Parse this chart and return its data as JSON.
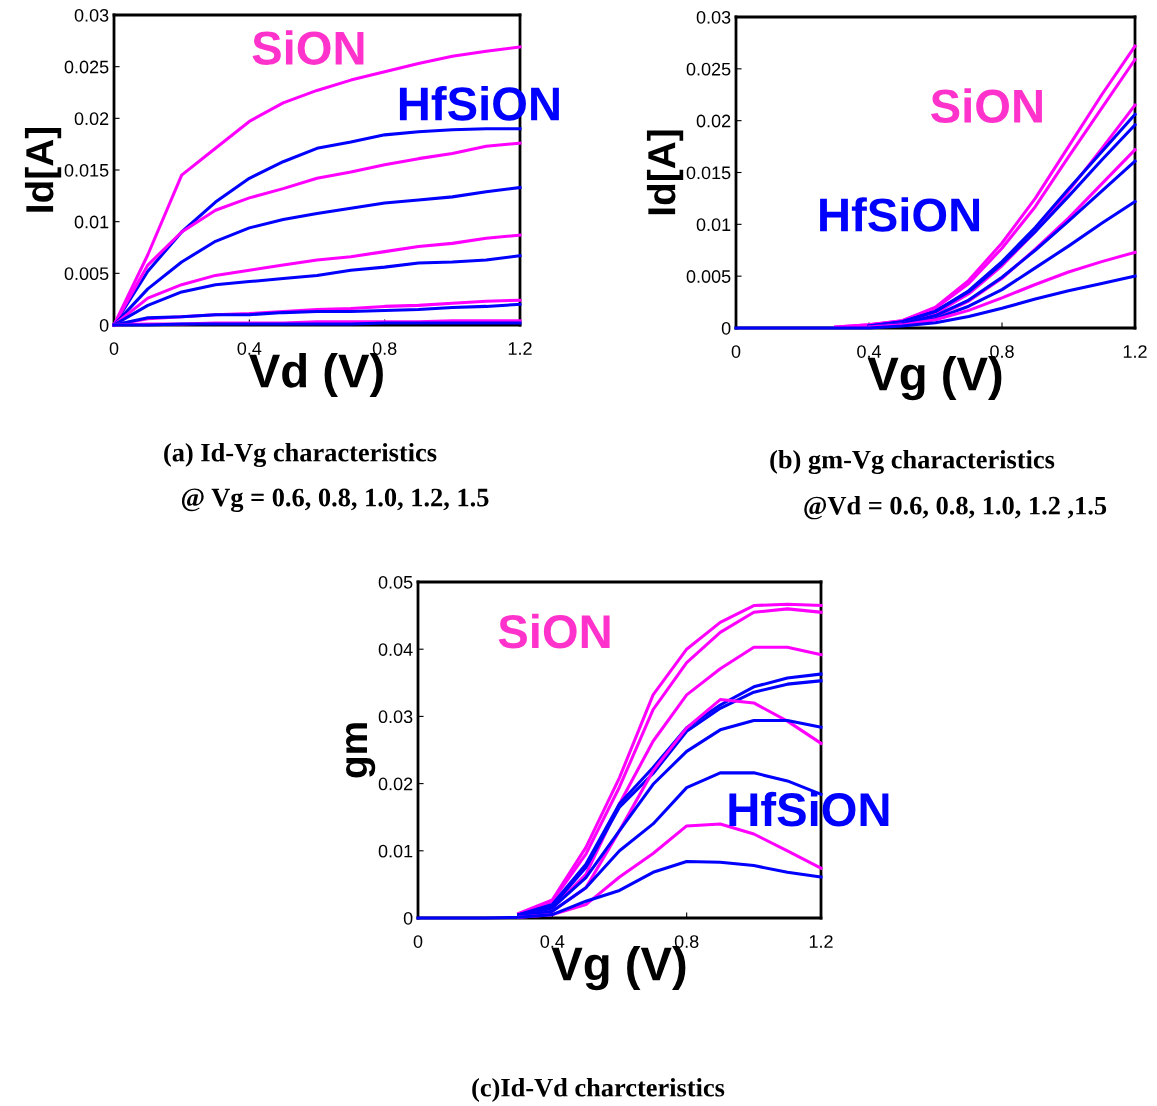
{
  "chart_data": [
    {
      "type": "line",
      "xlabel": "Vd (V)",
      "ylabel": "Id[A]",
      "x": [
        0,
        0.1,
        0.2,
        0.3,
        0.4,
        0.5,
        0.6,
        0.7,
        0.8,
        0.9,
        1.0,
        1.1,
        1.2
      ],
      "xlim": [
        0,
        1.2
      ],
      "xticks": [
        0,
        0.4,
        0.8,
        1.2
      ],
      "ylim": [
        0,
        0.03
      ],
      "yticks": [
        0,
        0.005,
        0.01,
        0.015,
        0.02,
        0.025,
        0.03
      ],
      "grid": false,
      "legend": false,
      "marker": "none",
      "line_style": "solid",
      "annotations": [
        "SiON",
        "HfSiON",
        "(a) Id-Vg characteristics",
        "@ Vg = 0.6, 0.8, 1.0, 1.2, 1.5"
      ],
      "series": [
        {
          "color": "#ff00ff",
          "values": [
            0,
            0.0068,
            0.0145,
            0.0171,
            0.0197,
            0.0215,
            0.0227,
            0.0237,
            0.0245,
            0.0253,
            0.026,
            0.0265,
            0.0269
          ]
        },
        {
          "color": "#0000ff",
          "values": [
            0,
            0.0052,
            0.009,
            0.0119,
            0.0142,
            0.0158,
            0.0171,
            0.0177,
            0.0184,
            0.0187,
            0.0189,
            0.019,
            0.019
          ]
        },
        {
          "color": "#ff00ff",
          "values": [
            0,
            0.0058,
            0.009,
            0.0111,
            0.0123,
            0.0132,
            0.0142,
            0.0148,
            0.0155,
            0.0161,
            0.0166,
            0.0173,
            0.0176
          ]
        },
        {
          "color": "#0000ff",
          "values": [
            0,
            0.0035,
            0.0061,
            0.0081,
            0.0094,
            0.0102,
            0.0108,
            0.0113,
            0.0118,
            0.0121,
            0.0124,
            0.0129,
            0.0133
          ]
        },
        {
          "color": "#ff00ff",
          "values": [
            0,
            0.0026,
            0.0039,
            0.0048,
            0.0053,
            0.0058,
            0.0063,
            0.0066,
            0.0071,
            0.0076,
            0.0079,
            0.0084,
            0.0087
          ]
        },
        {
          "color": "#0000ff",
          "values": [
            0,
            0.0019,
            0.0032,
            0.0039,
            0.0042,
            0.0045,
            0.0048,
            0.0053,
            0.0056,
            0.006,
            0.0061,
            0.0063,
            0.0067
          ]
        },
        {
          "color": "#ff00ff",
          "values": [
            0,
            0.0006,
            0.0008,
            0.001,
            0.0011,
            0.0013,
            0.0015,
            0.0016,
            0.0018,
            0.0019,
            0.0021,
            0.0023,
            0.0024
          ]
        },
        {
          "color": "#0000ff",
          "values": [
            0,
            0.0007,
            0.0008,
            0.001,
            0.001,
            0.0012,
            0.0013,
            0.0013,
            0.0014,
            0.0015,
            0.0017,
            0.0018,
            0.002
          ]
        },
        {
          "color": "#ff00ff",
          "values": [
            0,
            0.0001,
            0.0001,
            0.0002,
            0.0002,
            0.0002,
            0.0003,
            0.0003,
            0.0003,
            0.0003,
            0.0004,
            0.0004,
            0.0004
          ]
        },
        {
          "color": "#0000ff",
          "values": [
            0,
            0,
            0.0001,
            0.0001,
            0.0001,
            0.0001,
            0.0001,
            0.0001,
            0.0002,
            0.0002,
            0.0002,
            0.0002,
            0.0002
          ]
        }
      ]
    },
    {
      "type": "line",
      "xlabel": "Vg (V)",
      "ylabel": "Id[A]",
      "x": [
        0,
        0.1,
        0.2,
        0.3,
        0.4,
        0.5,
        0.6,
        0.7,
        0.8,
        0.9,
        1.0,
        1.1,
        1.2
      ],
      "xlim": [
        0,
        1.2
      ],
      "xticks": [
        0,
        0.4,
        0.8,
        1.2
      ],
      "ylim": [
        0,
        0.03
      ],
      "yticks": [
        0,
        0.005,
        0.01,
        0.015,
        0.02,
        0.025,
        0.03
      ],
      "grid": false,
      "legend": false,
      "marker": "none",
      "line_style": "solid",
      "annotations": [
        "SiON",
        "HfSiON",
        "(b) gm-Vg characteristics",
        "@Vd = 0.6, 0.8, 1.0, 1.2 ,1.5"
      ],
      "series": [
        {
          "color": "#ff00ff",
          "values": [
            null,
            null,
            null,
            0.0001,
            0.0003,
            0.0007,
            0.002,
            0.0046,
            0.0082,
            0.0125,
            0.0175,
            0.0225,
            0.0272
          ]
        },
        {
          "color": "#ff00ff",
          "values": [
            null,
            null,
            null,
            0.0001,
            0.0003,
            0.0007,
            0.0019,
            0.0043,
            0.0077,
            0.0117,
            0.0165,
            0.0212,
            0.0259
          ]
        },
        {
          "color": "#ff00ff",
          "values": [
            null,
            null,
            null,
            null,
            0.0002,
            0.0005,
            0.0014,
            0.0033,
            0.006,
            0.0093,
            0.0132,
            0.0173,
            0.0215
          ]
        },
        {
          "color": "#0000ff",
          "values": [
            null,
            null,
            null,
            null,
            0.0002,
            0.0006,
            0.0016,
            0.0036,
            0.0064,
            0.0097,
            0.0134,
            0.017,
            0.0206
          ]
        },
        {
          "color": "#0000ff",
          "values": [
            null,
            null,
            null,
            null,
            0.0002,
            0.0006,
            0.0016,
            0.0035,
            0.0062,
            0.0093,
            0.0127,
            0.0162,
            0.0196
          ]
        },
        {
          "color": "#ff00ff",
          "values": [
            null,
            null,
            null,
            null,
            0.0001,
            0.0004,
            0.0011,
            0.0026,
            0.0048,
            0.0076,
            0.0106,
            0.0139,
            0.0172
          ]
        },
        {
          "color": "#0000ff",
          "values": [
            null,
            null,
            null,
            null,
            0.0001,
            0.0004,
            0.0012,
            0.0027,
            0.0049,
            0.0075,
            0.0103,
            0.0132,
            0.0161
          ]
        },
        {
          "color": "#0000ff",
          "values": [
            null,
            null,
            null,
            null,
            0.0001,
            0.0003,
            0.0009,
            0.0021,
            0.0037,
            0.0058,
            0.0079,
            0.0101,
            0.0122
          ]
        },
        {
          "color": "#ff00ff",
          "values": [
            null,
            null,
            null,
            null,
            0.0001,
            0.0003,
            0.0008,
            0.0017,
            0.0029,
            0.0042,
            0.0054,
            0.0064,
            0.0073
          ]
        },
        {
          "color": "#0000ff",
          "values": [
            0,
            0,
            0,
            0,
            0,
            0.0002,
            0.0005,
            0.0011,
            0.0019,
            0.0028,
            0.0036,
            0.0043,
            0.005
          ]
        }
      ]
    },
    {
      "type": "line",
      "xlabel": "Vg (V)",
      "ylabel": "gm",
      "x": [
        0,
        0.1,
        0.2,
        0.3,
        0.4,
        0.5,
        0.6,
        0.7,
        0.8,
        0.9,
        1.0,
        1.1,
        1.2
      ],
      "xlim": [
        0,
        1.2
      ],
      "xticks": [
        0,
        0.4,
        0.8,
        1.2
      ],
      "ylim": [
        0,
        0.05
      ],
      "yticks": [
        0,
        0.01,
        0.02,
        0.03,
        0.04,
        0.05
      ],
      "grid": false,
      "legend": false,
      "marker": "none",
      "line_style": "solid",
      "annotations": [
        "SiON",
        "HfSiON",
        "(c)Id-Vd charcteristics"
      ],
      "series": [
        {
          "color": "#ff00ff",
          "values": [
            null,
            null,
            null,
            0.0007,
            0.0027,
            0.0105,
            0.0209,
            0.0332,
            0.04,
            0.044,
            0.0465,
            0.0467,
            0.0465
          ]
        },
        {
          "color": "#ff00ff",
          "values": [
            null,
            null,
            null,
            0.0006,
            0.0025,
            0.0095,
            0.0195,
            0.031,
            0.038,
            0.0425,
            0.0455,
            0.046,
            0.0455
          ]
        },
        {
          "color": "#ff00ff",
          "values": [
            null,
            null,
            null,
            0.0004,
            0.0015,
            0.0065,
            0.017,
            0.0263,
            0.0332,
            0.0371,
            0.0403,
            0.0403,
            0.0392
          ]
        },
        {
          "color": "#0000ff",
          "values": [
            null,
            null,
            null,
            0.0005,
            0.002,
            0.008,
            0.017,
            0.0224,
            0.0283,
            0.0317,
            0.0344,
            0.0357,
            0.0363
          ]
        },
        {
          "color": "#0000ff",
          "values": [
            null,
            null,
            null,
            0.0005,
            0.0018,
            0.0075,
            0.0165,
            0.0215,
            0.0278,
            0.0312,
            0.0336,
            0.0348,
            0.0353
          ]
        },
        {
          "color": "#ff00ff",
          "values": [
            null,
            null,
            null,
            0.0002,
            0.001,
            0.0045,
            0.013,
            0.0219,
            0.0283,
            0.0325,
            0.032,
            0.0293,
            0.026
          ]
        },
        {
          "color": "#0000ff",
          "values": [
            null,
            null,
            null,
            0.0003,
            0.0015,
            0.006,
            0.013,
            0.0199,
            0.0248,
            0.028,
            0.0294,
            0.0294,
            0.0284
          ]
        },
        {
          "color": "#0000ff",
          "values": [
            null,
            null,
            null,
            0.0002,
            0.001,
            0.0045,
            0.01,
            0.014,
            0.0194,
            0.0216,
            0.0216,
            0.0204,
            0.0184
          ]
        },
        {
          "color": "#ff00ff",
          "values": [
            null,
            null,
            null,
            0.0001,
            0.0005,
            0.002,
            0.0061,
            0.0096,
            0.0137,
            0.014,
            0.0125,
            0.01,
            0.0074
          ]
        },
        {
          "color": "#0000ff",
          "values": [
            0,
            0,
            0,
            0.0001,
            0.0005,
            0.0025,
            0.0041,
            0.0068,
            0.0084,
            0.0083,
            0.0078,
            0.0068,
            0.0061
          ]
        }
      ]
    }
  ]
}
